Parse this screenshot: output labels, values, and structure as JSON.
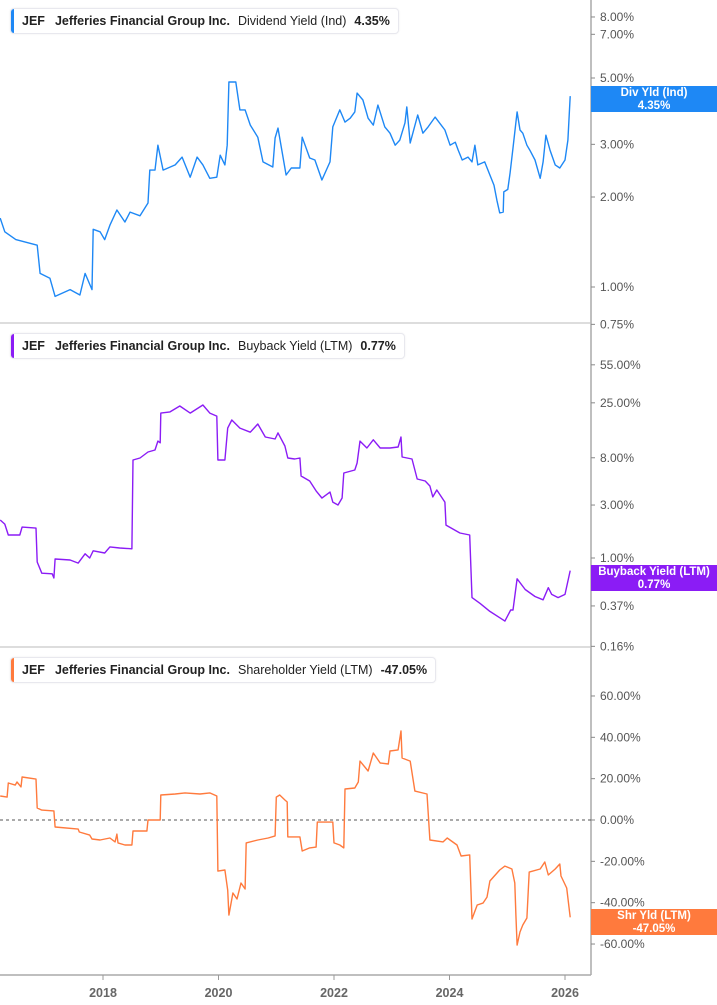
{
  "colors": {
    "dividend": "#1e88f5",
    "buyback": "#8b1cf5",
    "shareholder": "#ff7a3d"
  },
  "x_axis": {
    "ticks": [
      "2018",
      "2020",
      "2022",
      "2024",
      "2026"
    ]
  },
  "chart_data": [
    {
      "type": "line",
      "scale": "log",
      "legend": {
        "ticker": "JEF",
        "company": "Jefferies Financial Group Inc.",
        "metric": "Dividend Yield (Ind)",
        "value": "4.35%"
      },
      "tag": {
        "label": "Div Yld (Ind)",
        "value": "4.35%"
      },
      "yticks": [
        {
          "v": 8,
          "label": "8.00%"
        },
        {
          "v": 7,
          "label": "7.00%"
        },
        {
          "v": 5,
          "label": "5.00%"
        },
        {
          "v": 3,
          "label": "3.00%"
        },
        {
          "v": 2,
          "label": "2.00%"
        },
        {
          "v": 1,
          "label": "1.00%"
        },
        {
          "v": 0.75,
          "label": "0.75%"
        }
      ],
      "points": [
        [
          2016.22,
          1.7
        ],
        [
          2016.3,
          1.53
        ],
        [
          2016.49,
          1.44
        ],
        [
          2016.86,
          1.38
        ],
        [
          2016.91,
          1.11
        ],
        [
          2017.08,
          1.07
        ],
        [
          2017.17,
          0.93
        ],
        [
          2017.43,
          0.98
        ],
        [
          2017.6,
          0.94
        ],
        [
          2017.69,
          1.11
        ],
        [
          2017.81,
          0.98
        ],
        [
          2017.83,
          1.56
        ],
        [
          2017.95,
          1.53
        ],
        [
          2018.03,
          1.44
        ],
        [
          2018.12,
          1.61
        ],
        [
          2018.24,
          1.81
        ],
        [
          2018.38,
          1.65
        ],
        [
          2018.47,
          1.78
        ],
        [
          2018.64,
          1.73
        ],
        [
          2018.78,
          1.91
        ],
        [
          2018.81,
          2.46
        ],
        [
          2018.9,
          2.46
        ],
        [
          2018.95,
          2.98
        ],
        [
          2019.04,
          2.46
        ],
        [
          2019.25,
          2.56
        ],
        [
          2019.37,
          2.72
        ],
        [
          2019.51,
          2.33
        ],
        [
          2019.63,
          2.72
        ],
        [
          2019.73,
          2.56
        ],
        [
          2019.85,
          2.31
        ],
        [
          2019.97,
          2.33
        ],
        [
          2020.03,
          2.76
        ],
        [
          2020.11,
          2.56
        ],
        [
          2020.15,
          2.98
        ],
        [
          2020.18,
          4.85
        ],
        [
          2020.3,
          4.85
        ],
        [
          2020.37,
          3.91
        ],
        [
          2020.46,
          3.91
        ],
        [
          2020.55,
          3.48
        ],
        [
          2020.68,
          3.17
        ],
        [
          2020.77,
          2.62
        ],
        [
          2020.94,
          2.52
        ],
        [
          2020.98,
          3.15
        ],
        [
          2021.03,
          3.4
        ],
        [
          2021.17,
          2.37
        ],
        [
          2021.26,
          2.5
        ],
        [
          2021.41,
          2.5
        ],
        [
          2021.45,
          3.17
        ],
        [
          2021.58,
          2.7
        ],
        [
          2021.67,
          2.66
        ],
        [
          2021.79,
          2.28
        ],
        [
          2021.93,
          2.62
        ],
        [
          2021.98,
          3.43
        ],
        [
          2022.1,
          3.91
        ],
        [
          2022.19,
          3.56
        ],
        [
          2022.28,
          3.67
        ],
        [
          2022.36,
          3.85
        ],
        [
          2022.4,
          4.45
        ],
        [
          2022.5,
          4.22
        ],
        [
          2022.59,
          3.67
        ],
        [
          2022.68,
          3.48
        ],
        [
          2022.76,
          4.06
        ],
        [
          2022.88,
          3.43
        ],
        [
          2022.97,
          3.27
        ],
        [
          2023.06,
          2.98
        ],
        [
          2023.14,
          3.1
        ],
        [
          2023.23,
          3.54
        ],
        [
          2023.26,
          4.0
        ],
        [
          2023.32,
          3.03
        ],
        [
          2023.45,
          3.76
        ],
        [
          2023.54,
          3.27
        ],
        [
          2023.63,
          3.43
        ],
        [
          2023.75,
          3.7
        ],
        [
          2023.92,
          3.35
        ],
        [
          2024.01,
          2.98
        ],
        [
          2024.1,
          3.05
        ],
        [
          2024.15,
          2.87
        ],
        [
          2024.22,
          2.66
        ],
        [
          2024.32,
          2.72
        ],
        [
          2024.39,
          2.62
        ],
        [
          2024.44,
          2.98
        ],
        [
          2024.49,
          2.56
        ],
        [
          2024.61,
          2.62
        ],
        [
          2024.7,
          2.37
        ],
        [
          2024.77,
          2.19
        ],
        [
          2024.82,
          1.95
        ],
        [
          2024.87,
          1.77
        ],
        [
          2024.93,
          1.78
        ],
        [
          2024.94,
          2.08
        ],
        [
          2025.01,
          2.12
        ],
        [
          2025.05,
          2.41
        ],
        [
          2025.1,
          2.92
        ],
        [
          2025.17,
          3.85
        ],
        [
          2025.22,
          3.35
        ],
        [
          2025.27,
          3.27
        ],
        [
          2025.34,
          2.98
        ],
        [
          2025.39,
          2.87
        ],
        [
          2025.48,
          2.66
        ],
        [
          2025.57,
          2.31
        ],
        [
          2025.62,
          2.62
        ],
        [
          2025.67,
          3.22
        ],
        [
          2025.74,
          2.87
        ],
        [
          2025.83,
          2.56
        ],
        [
          2025.91,
          2.5
        ],
        [
          2026.0,
          2.66
        ],
        [
          2026.05,
          3.1
        ],
        [
          2026.09,
          4.35
        ]
      ]
    },
    {
      "type": "line",
      "scale": "log",
      "legend": {
        "ticker": "JEF",
        "company": "Jefferies Financial Group Inc.",
        "metric": "Buyback Yield (LTM)",
        "value": "0.77%"
      },
      "tag": {
        "label": "Buyback Yield (LTM)",
        "value": "0.77%"
      },
      "yticks": [
        {
          "v": 55,
          "label": "55.00%"
        },
        {
          "v": 25,
          "label": "25.00%"
        },
        {
          "v": 8,
          "label": "8.00%"
        },
        {
          "v": 3,
          "label": "3.00%"
        },
        {
          "v": 1,
          "label": "1.00%"
        },
        {
          "v": 0.37,
          "label": "0.37%"
        },
        {
          "v": 0.16,
          "label": "0.16%"
        }
      ],
      "points": [
        [
          2016.22,
          2.2
        ],
        [
          2016.3,
          2.02
        ],
        [
          2016.36,
          1.61
        ],
        [
          2016.56,
          1.61
        ],
        [
          2016.6,
          1.9
        ],
        [
          2016.84,
          1.86
        ],
        [
          2016.86,
          0.92
        ],
        [
          2016.94,
          0.73
        ],
        [
          2017.12,
          0.72
        ],
        [
          2017.15,
          0.66
        ],
        [
          2017.17,
          0.98
        ],
        [
          2017.43,
          0.96
        ],
        [
          2017.57,
          0.9
        ],
        [
          2017.69,
          1.09
        ],
        [
          2017.77,
          1.0
        ],
        [
          2017.83,
          1.16
        ],
        [
          2018.03,
          1.11
        ],
        [
          2018.12,
          1.26
        ],
        [
          2018.29,
          1.23
        ],
        [
          2018.5,
          1.21
        ],
        [
          2018.52,
          7.64
        ],
        [
          2018.64,
          7.96
        ],
        [
          2018.78,
          9.02
        ],
        [
          2018.9,
          9.4
        ],
        [
          2018.95,
          11.3
        ],
        [
          2018.99,
          10.9
        ],
        [
          2019.0,
          20.2
        ],
        [
          2019.16,
          20.7
        ],
        [
          2019.33,
          23.4
        ],
        [
          2019.51,
          20.2
        ],
        [
          2019.73,
          23.9
        ],
        [
          2019.85,
          20.2
        ],
        [
          2019.97,
          19.0
        ],
        [
          2019.99,
          7.64
        ],
        [
          2020.11,
          7.64
        ],
        [
          2020.16,
          14.8
        ],
        [
          2020.23,
          17.5
        ],
        [
          2020.37,
          14.8
        ],
        [
          2020.55,
          13.6
        ],
        [
          2020.68,
          16.1
        ],
        [
          2020.81,
          12.3
        ],
        [
          2020.98,
          11.8
        ],
        [
          2021.03,
          13.4
        ],
        [
          2021.15,
          10.2
        ],
        [
          2021.2,
          7.96
        ],
        [
          2021.32,
          7.8
        ],
        [
          2021.41,
          7.96
        ],
        [
          2021.43,
          5.48
        ],
        [
          2021.58,
          4.94
        ],
        [
          2021.69,
          4.02
        ],
        [
          2021.79,
          3.47
        ],
        [
          2021.93,
          3.93
        ],
        [
          2021.98,
          3.19
        ],
        [
          2022.07,
          3.0
        ],
        [
          2022.14,
          3.47
        ],
        [
          2022.17,
          5.83
        ],
        [
          2022.36,
          6.21
        ],
        [
          2022.4,
          7.18
        ],
        [
          2022.45,
          11.3
        ],
        [
          2022.57,
          9.79
        ],
        [
          2022.68,
          11.6
        ],
        [
          2022.8,
          9.79
        ],
        [
          2022.97,
          9.79
        ],
        [
          2023.11,
          10.0
        ],
        [
          2023.16,
          12.3
        ],
        [
          2023.18,
          8.13
        ],
        [
          2023.35,
          7.8
        ],
        [
          2023.44,
          5.15
        ],
        [
          2023.58,
          4.94
        ],
        [
          2023.66,
          4.45
        ],
        [
          2023.71,
          3.55
        ],
        [
          2023.78,
          4.1
        ],
        [
          2023.92,
          3.19
        ],
        [
          2023.94,
          1.98
        ],
        [
          2024.18,
          1.68
        ],
        [
          2024.35,
          1.61
        ],
        [
          2024.39,
          0.44
        ],
        [
          2024.53,
          0.39
        ],
        [
          2024.7,
          0.33
        ],
        [
          2024.87,
          0.29
        ],
        [
          2024.96,
          0.27
        ],
        [
          2025.06,
          0.34
        ],
        [
          2025.1,
          0.34
        ],
        [
          2025.17,
          0.65
        ],
        [
          2025.31,
          0.52
        ],
        [
          2025.48,
          0.45
        ],
        [
          2025.62,
          0.42
        ],
        [
          2025.71,
          0.54
        ],
        [
          2025.77,
          0.47
        ],
        [
          2025.88,
          0.44
        ],
        [
          2026.0,
          0.47
        ],
        [
          2026.09,
          0.77
        ]
      ]
    },
    {
      "type": "line",
      "scale": "linear",
      "zero_line": true,
      "legend": {
        "ticker": "JEF",
        "company": "Jefferies Financial Group Inc.",
        "metric": "Shareholder Yield (LTM)",
        "value": "-47.05%"
      },
      "tag": {
        "label": "Shr Yld (LTM)",
        "value": "-47.05%"
      },
      "yticks": [
        {
          "v": 60,
          "label": "60.00%"
        },
        {
          "v": 40,
          "label": "40.00%"
        },
        {
          "v": 20,
          "label": "20.00%"
        },
        {
          "v": 0,
          "label": "0.00%"
        },
        {
          "v": -20,
          "label": "-20.00%"
        },
        {
          "v": -40,
          "label": "-40.00%"
        },
        {
          "v": -60,
          "label": "-60.00%"
        }
      ],
      "points": [
        [
          2016.22,
          11.6
        ],
        [
          2016.34,
          11.1
        ],
        [
          2016.36,
          17.9
        ],
        [
          2016.48,
          16.9
        ],
        [
          2016.51,
          18.4
        ],
        [
          2016.58,
          16.0
        ],
        [
          2016.6,
          20.8
        ],
        [
          2016.84,
          19.8
        ],
        [
          2016.86,
          5.8
        ],
        [
          2016.94,
          4.8
        ],
        [
          2017.15,
          4.4
        ],
        [
          2017.17,
          -3.4
        ],
        [
          2017.57,
          -4.4
        ],
        [
          2017.59,
          -5.8
        ],
        [
          2017.77,
          -7.3
        ],
        [
          2017.81,
          -9.2
        ],
        [
          2017.95,
          -9.7
        ],
        [
          2018.12,
          -8.7
        ],
        [
          2018.21,
          -10.6
        ],
        [
          2018.24,
          -6.8
        ],
        [
          2018.26,
          -11.1
        ],
        [
          2018.38,
          -12.1
        ],
        [
          2018.5,
          -12.1
        ],
        [
          2018.52,
          -5.3
        ],
        [
          2018.76,
          -5.3
        ],
        [
          2018.78,
          0
        ],
        [
          2018.99,
          0
        ],
        [
          2019.0,
          12.1
        ],
        [
          2019.25,
          12.6
        ],
        [
          2019.42,
          13.1
        ],
        [
          2019.68,
          12.6
        ],
        [
          2019.85,
          13.1
        ],
        [
          2019.97,
          11.6
        ],
        [
          2019.99,
          -24.7
        ],
        [
          2020.11,
          -24.2
        ],
        [
          2020.16,
          -33.9
        ],
        [
          2020.18,
          -46.0
        ],
        [
          2020.25,
          -35.3
        ],
        [
          2020.32,
          -38.2
        ],
        [
          2020.39,
          -30.5
        ],
        [
          2020.46,
          -33.4
        ],
        [
          2020.48,
          -11.1
        ],
        [
          2020.68,
          -9.7
        ],
        [
          2020.86,
          -8.7
        ],
        [
          2020.98,
          -7.7
        ],
        [
          2021.0,
          11.1
        ],
        [
          2021.06,
          12.1
        ],
        [
          2021.15,
          9.7
        ],
        [
          2021.19,
          8.7
        ],
        [
          2021.2,
          -8.2
        ],
        [
          2021.41,
          -8.2
        ],
        [
          2021.45,
          -15.0
        ],
        [
          2021.58,
          -13.5
        ],
        [
          2021.69,
          -13.1
        ],
        [
          2021.71,
          -1.0
        ],
        [
          2021.98,
          -1.0
        ],
        [
          2022.0,
          -11.1
        ],
        [
          2022.1,
          -12.1
        ],
        [
          2022.17,
          -13.5
        ],
        [
          2022.19,
          15.0
        ],
        [
          2022.36,
          15.5
        ],
        [
          2022.42,
          18.4
        ],
        [
          2022.45,
          28.5
        ],
        [
          2022.59,
          23.7
        ],
        [
          2022.68,
          32.4
        ],
        [
          2022.8,
          27.6
        ],
        [
          2022.94,
          27.1
        ],
        [
          2022.97,
          33.4
        ],
        [
          2023.11,
          33.9
        ],
        [
          2023.16,
          43.1
        ],
        [
          2023.18,
          30.0
        ],
        [
          2023.32,
          28.5
        ],
        [
          2023.4,
          14.0
        ],
        [
          2023.61,
          12.6
        ],
        [
          2023.66,
          -9.7
        ],
        [
          2023.89,
          -10.6
        ],
        [
          2023.96,
          -8.7
        ],
        [
          2024.13,
          -12.1
        ],
        [
          2024.2,
          -17.4
        ],
        [
          2024.35,
          -16.9
        ],
        [
          2024.39,
          -47.9
        ],
        [
          2024.48,
          -41.1
        ],
        [
          2024.58,
          -40.2
        ],
        [
          2024.65,
          -37.3
        ],
        [
          2024.7,
          -29.5
        ],
        [
          2024.87,
          -24.2
        ],
        [
          2024.96,
          -22.3
        ],
        [
          2025.08,
          -23.7
        ],
        [
          2025.13,
          -30.5
        ],
        [
          2025.15,
          -46.0
        ],
        [
          2025.17,
          -60.5
        ],
        [
          2025.22,
          -54.2
        ],
        [
          2025.27,
          -50.8
        ],
        [
          2025.34,
          -47.4
        ],
        [
          2025.38,
          -25.2
        ],
        [
          2025.57,
          -23.7
        ],
        [
          2025.65,
          -20.3
        ],
        [
          2025.71,
          -26.6
        ],
        [
          2025.83,
          -23.7
        ],
        [
          2025.91,
          -21.3
        ],
        [
          2025.93,
          -27.1
        ],
        [
          2026.03,
          -32.9
        ],
        [
          2026.09,
          -47.05
        ]
      ]
    }
  ]
}
